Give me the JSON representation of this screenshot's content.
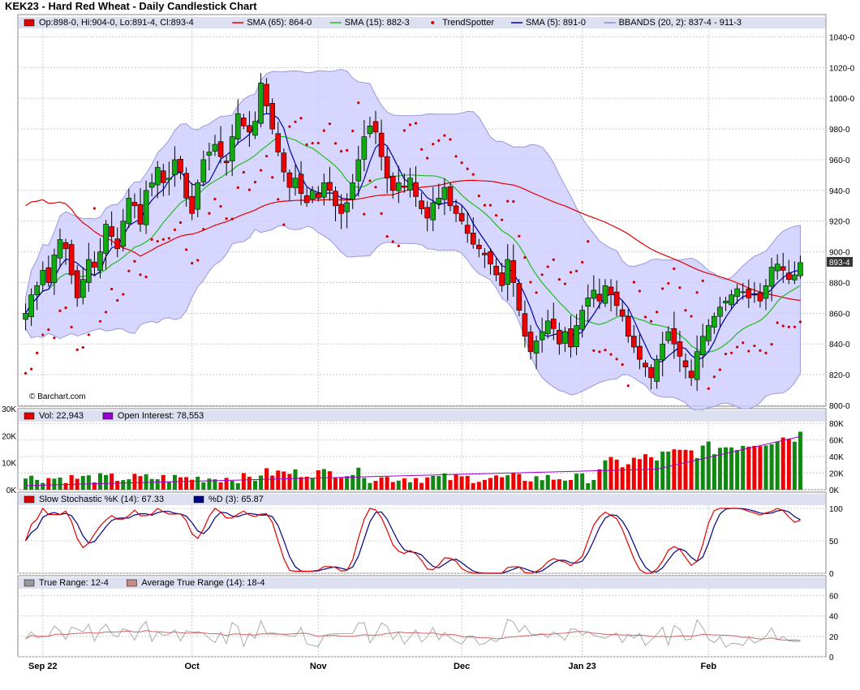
{
  "title": "KEK23 - Hard Red Wheat - Daily Candlestick Chart",
  "watermark": "© Barchart.com",
  "price_panel": {
    "legend": [
      {
        "text": "Op:898-0, Hi:904-0, Lo:891-4, Cl:893-4",
        "color": "#e00000",
        "kind": "box"
      },
      {
        "text": "SMA (65): 864-0",
        "color": "#e00000",
        "kind": "line"
      },
      {
        "text": "SMA (15): 882-3",
        "color": "#22bb22",
        "kind": "line"
      },
      {
        "text": "TrendSpotter",
        "color": "#cc0000",
        "kind": "dot"
      },
      {
        "text": "SMA (5): 891-0",
        "color": "#0000aa",
        "kind": "line"
      },
      {
        "text": "BBANDS (20, 2): 837-4 - 911-3",
        "color": "#8888ee",
        "kind": "line"
      }
    ],
    "y_ticks": [
      "1040-0",
      "1020-0",
      "1000-0",
      "980-0",
      "960-0",
      "940-0",
      "920-0",
      "900-0",
      "880-0",
      "860-0",
      "840-0",
      "820-0",
      "800-0"
    ],
    "y_tick_values": [
      1040,
      1020,
      1000,
      980,
      960,
      940,
      920,
      900,
      880,
      860,
      840,
      820,
      800
    ],
    "last_price_label": "893-4",
    "last_price": 893.5
  },
  "volume_panel": {
    "legend": [
      {
        "text": "Vol: 22,943",
        "color": "#e00000",
        "kind": "box"
      },
      {
        "text": "Open Interest: 78,553",
        "color": "#9900cc",
        "kind": "box"
      }
    ],
    "left_ticks": [
      "30K",
      "20K",
      "10K",
      "0K"
    ],
    "right_ticks": [
      "80K",
      "60K",
      "40K",
      "20K",
      "0K"
    ]
  },
  "stoch_panel": {
    "legend": [
      {
        "text": "Slow Stochastic %K (14): 67.33",
        "color": "#e00000",
        "kind": "box"
      },
      {
        "text": "%D (3): 65.87",
        "color": "#000080",
        "kind": "box"
      }
    ],
    "right_ticks": [
      "100",
      "50",
      "0"
    ]
  },
  "tr_panel": {
    "legend": [
      {
        "text": "True Range: 12-4",
        "color": "#999999",
        "kind": "box"
      },
      {
        "text": "Average True Range (14): 18-4",
        "color": "#cc8888",
        "kind": "box"
      }
    ],
    "right_ticks": [
      "60",
      "40",
      "20",
      "0"
    ]
  },
  "x_labels": [
    "Sep 22",
    "Oct",
    "Nov",
    "Dec",
    "Jan 23",
    "Feb"
  ],
  "colors": {
    "up": "#11aa11",
    "down": "#ee0000",
    "band_fill": "#ccccff",
    "band_line": "#9999dd",
    "grid": "#cccccc"
  },
  "chart_data": {
    "type": "candlestick",
    "title": "KEK23 - Hard Red Wheat - Daily Candlestick Chart",
    "y_range": [
      800,
      1045
    ],
    "closes": [
      860,
      872,
      878,
      888,
      880,
      898,
      908,
      902,
      885,
      870,
      882,
      895,
      890,
      900,
      918,
      910,
      902,
      920,
      935,
      930,
      918,
      940,
      945,
      955,
      945,
      948,
      960,
      952,
      935,
      925,
      945,
      960,
      965,
      970,
      962,
      958,
      975,
      990,
      982,
      978,
      985,
      1010,
      995,
      980,
      965,
      952,
      942,
      948,
      938,
      932,
      940,
      935,
      945,
      940,
      930,
      925,
      932,
      945,
      960,
      975,
      982,
      978,
      962,
      948,
      940,
      945,
      942,
      948,
      936,
      928,
      922,
      932,
      935,
      942,
      930,
      925,
      920,
      912,
      905,
      902,
      898,
      892,
      885,
      878,
      895,
      880,
      862,
      845,
      835,
      842,
      848,
      855,
      850,
      840,
      848,
      838,
      852,
      862,
      870,
      875,
      868,
      878,
      872,
      865,
      858,
      845,
      838,
      830,
      825,
      818,
      830,
      840,
      848,
      840,
      832,
      825,
      818,
      835,
      845,
      852,
      858,
      864,
      868,
      872,
      876,
      874,
      870,
      872,
      868,
      878,
      890,
      892,
      888,
      882,
      885,
      893
    ]
  },
  "_note": "closes are approximate daily settlement prices read off the chart"
}
